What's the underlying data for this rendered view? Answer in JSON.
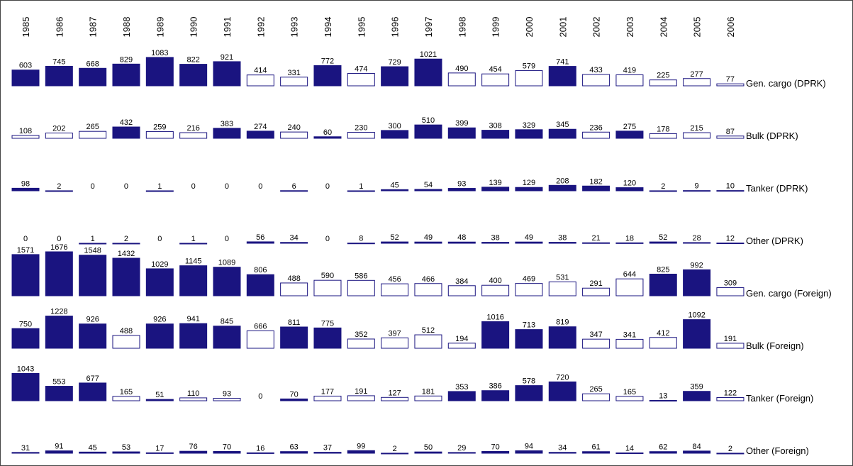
{
  "chart_data": {
    "type": "bar",
    "categories": [
      "1985",
      "1986",
      "1987",
      "1988",
      "1989",
      "1990",
      "1991",
      "1992",
      "1993",
      "1994",
      "1995",
      "1996",
      "1997",
      "1998",
      "1999",
      "2000",
      "2001",
      "2002",
      "2003",
      "2004",
      "2005",
      "2006"
    ],
    "edge_color": "#1a1480",
    "series": [
      {
        "name": "Gen. cargo (DPRK)",
        "values": [
          603,
          745,
          668,
          829,
          1083,
          822,
          921,
          414,
          331,
          772,
          474,
          729,
          1021,
          490,
          454,
          579,
          741,
          433,
          419,
          225,
          277,
          77
        ],
        "colors": [
          "#1a1480",
          "#1a1480",
          "#1a1480",
          "#1a1480",
          "#1a1480",
          "#1a1480",
          "#1a1480",
          "#ffffff",
          "#ffffff",
          "#1a1480",
          "#ffffff",
          "#1a1480",
          "#1a1480",
          "#ffffff",
          "#ffffff",
          "#ffffff",
          "#1a1480",
          "#ffffff",
          "#ffffff",
          "#ffffff",
          "#ffffff",
          "#ffffff"
        ]
      },
      {
        "name": "Bulk (DPRK)",
        "values": [
          108,
          202,
          265,
          432,
          259,
          216,
          383,
          274,
          240,
          60,
          230,
          300,
          510,
          399,
          308,
          329,
          345,
          236,
          275,
          178,
          215,
          87
        ],
        "colors": [
          "#ffffff",
          "#ffffff",
          "#ffffff",
          "#1a1480",
          "#ffffff",
          "#ffffff",
          "#1a1480",
          "#1a1480",
          "#ffffff",
          "#1a1480",
          "#ffffff",
          "#1a1480",
          "#1a1480",
          "#1a1480",
          "#1a1480",
          "#1a1480",
          "#1a1480",
          "#ffffff",
          "#1a1480",
          "#ffffff",
          "#ffffff",
          "#ffffff"
        ]
      },
      {
        "name": "Tanker (DPRK)",
        "values": [
          98,
          2,
          0,
          0,
          1,
          0,
          0,
          0,
          6,
          0,
          1,
          45,
          54,
          93,
          139,
          129,
          208,
          182,
          120,
          2,
          9,
          10
        ],
        "colors": [
          "#1a1480",
          "#ffffff",
          "#ffffff",
          "#ffffff",
          "#ffffff",
          "#ffffff",
          "#ffffff",
          "#ffffff",
          "#ffffff",
          "#ffffff",
          "#ffffff",
          "#1a1480",
          "#1a1480",
          "#1a1480",
          "#1a1480",
          "#1a1480",
          "#1a1480",
          "#1a1480",
          "#1a1480",
          "#ffffff",
          "#ffffff",
          "#ffffff"
        ]
      },
      {
        "name": "Other (DPRK)",
        "values": [
          0,
          0,
          1,
          2,
          0,
          1,
          0,
          56,
          34,
          0,
          8,
          52,
          49,
          48,
          38,
          49,
          38,
          21,
          18,
          52,
          28,
          12
        ],
        "colors": [
          "#ffffff",
          "#ffffff",
          "#ffffff",
          "#ffffff",
          "#ffffff",
          "#ffffff",
          "#ffffff",
          "#1a1480",
          "#1a1480",
          "#ffffff",
          "#ffffff",
          "#1a1480",
          "#1a1480",
          "#1a1480",
          "#1a1480",
          "#1a1480",
          "#1a1480",
          "#ffffff",
          "#ffffff",
          "#1a1480",
          "#1a1480",
          "#ffffff"
        ]
      },
      {
        "name": "Gen. cargo (Foreign)",
        "values": [
          1571,
          1676,
          1548,
          1432,
          1029,
          1145,
          1089,
          806,
          488,
          590,
          586,
          456,
          466,
          384,
          400,
          469,
          531,
          291,
          644,
          825,
          992,
          309
        ],
        "colors": [
          "#1a1480",
          "#1a1480",
          "#1a1480",
          "#1a1480",
          "#1a1480",
          "#1a1480",
          "#1a1480",
          "#1a1480",
          "#ffffff",
          "#ffffff",
          "#ffffff",
          "#ffffff",
          "#ffffff",
          "#ffffff",
          "#ffffff",
          "#ffffff",
          "#ffffff",
          "#ffffff",
          "#ffffff",
          "#1a1480",
          "#1a1480",
          "#ffffff"
        ]
      },
      {
        "name": "Bulk (Foreign)",
        "values": [
          750,
          1228,
          926,
          488,
          926,
          941,
          845,
          666,
          811,
          775,
          352,
          397,
          512,
          194,
          1016,
          713,
          819,
          347,
          341,
          412,
          1092,
          191
        ],
        "colors": [
          "#1a1480",
          "#1a1480",
          "#1a1480",
          "#ffffff",
          "#1a1480",
          "#1a1480",
          "#1a1480",
          "#ffffff",
          "#1a1480",
          "#1a1480",
          "#ffffff",
          "#ffffff",
          "#ffffff",
          "#ffffff",
          "#1a1480",
          "#1a1480",
          "#1a1480",
          "#ffffff",
          "#ffffff",
          "#ffffff",
          "#1a1480",
          "#ffffff"
        ]
      },
      {
        "name": "Tanker (Foreign)",
        "values": [
          1043,
          553,
          677,
          165,
          51,
          110,
          93,
          0,
          70,
          177,
          191,
          127,
          181,
          353,
          386,
          578,
          720,
          265,
          165,
          13,
          359,
          122
        ],
        "colors": [
          "#1a1480",
          "#1a1480",
          "#1a1480",
          "#ffffff",
          "#1a1480",
          "#ffffff",
          "#ffffff",
          "#ffffff",
          "#1a1480",
          "#ffffff",
          "#ffffff",
          "#ffffff",
          "#ffffff",
          "#1a1480",
          "#1a1480",
          "#1a1480",
          "#1a1480",
          "#ffffff",
          "#ffffff",
          "#ffffff",
          "#1a1480",
          "#ffffff"
        ]
      },
      {
        "name": "Other (Foreign)",
        "values": [
          31,
          91,
          45,
          53,
          17,
          76,
          70,
          16,
          63,
          37,
          99,
          2,
          50,
          29,
          70,
          94,
          34,
          61,
          14,
          62,
          84,
          2
        ],
        "colors": [
          "#1a1480",
          "#1a1480",
          "#1a1480",
          "#1a1480",
          "#ffffff",
          "#1a1480",
          "#1a1480",
          "#ffffff",
          "#1a1480",
          "#1a1480",
          "#1a1480",
          "#ffffff",
          "#1a1480",
          "#1a1480",
          "#1a1480",
          "#1a1480",
          "#1a1480",
          "#1a1480",
          "#ffffff",
          "#1a1480",
          "#1a1480",
          "#ffffff"
        ]
      }
    ]
  }
}
